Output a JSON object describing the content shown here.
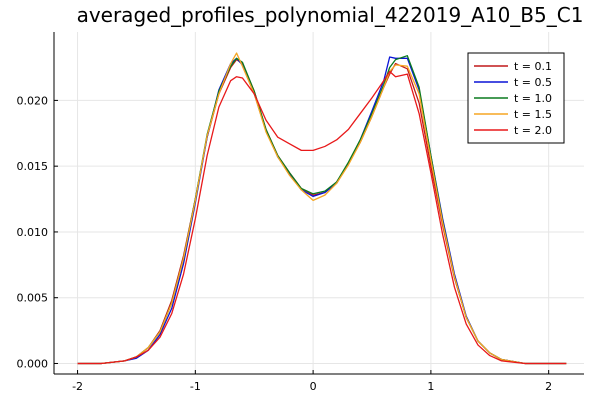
{
  "chart_data": {
    "type": "line",
    "title": "averaged_profiles_polynomial_422019_A10_B5_C1",
    "xlabel": "",
    "ylabel": "",
    "xlim": [
      -2.2,
      2.3
    ],
    "ylim": [
      -0.0008,
      0.0252
    ],
    "grid": true,
    "legend_position": "top-right",
    "x_ticks": [
      {
        "value": -2,
        "label": "-2"
      },
      {
        "value": -1,
        "label": "-1"
      },
      {
        "value": 0,
        "label": "0"
      },
      {
        "value": 1,
        "label": "1"
      },
      {
        "value": 2,
        "label": "2"
      }
    ],
    "y_ticks": [
      {
        "value": 0.0,
        "label": "0.000"
      },
      {
        "value": 0.005,
        "label": "0.005"
      },
      {
        "value": 0.01,
        "label": "0.010"
      },
      {
        "value": 0.015,
        "label": "0.015"
      },
      {
        "value": 0.02,
        "label": "0.020"
      }
    ],
    "x": [
      -2.0,
      -1.8,
      -1.6,
      -1.5,
      -1.4,
      -1.3,
      -1.2,
      -1.1,
      -1.0,
      -0.9,
      -0.8,
      -0.7,
      -0.65,
      -0.6,
      -0.5,
      -0.4,
      -0.3,
      -0.2,
      -0.1,
      0.0,
      0.1,
      0.2,
      0.3,
      0.4,
      0.5,
      0.6,
      0.65,
      0.7,
      0.8,
      0.9,
      1.0,
      1.1,
      1.2,
      1.3,
      1.4,
      1.5,
      1.6,
      1.8,
      2.0,
      2.15
    ],
    "series": [
      {
        "name": "t = 0.1",
        "color": "#c0191a",
        "values": [
          0.0,
          0.0,
          0.0002,
          0.0005,
          0.0012,
          0.0025,
          0.0048,
          0.0082,
          0.0125,
          0.0172,
          0.0205,
          0.0225,
          0.0231,
          0.0228,
          0.0207,
          0.0178,
          0.0158,
          0.0145,
          0.0133,
          0.0128,
          0.013,
          0.0138,
          0.0152,
          0.0168,
          0.0188,
          0.021,
          0.022,
          0.0228,
          0.0224,
          0.0198,
          0.015,
          0.0105,
          0.0065,
          0.0035,
          0.0017,
          0.0008,
          0.0003,
          0.0,
          0.0,
          0.0
        ]
      },
      {
        "name": "t = 0.5",
        "color": "#0a14d6",
        "values": [
          0.0,
          0.0,
          0.0002,
          0.0004,
          0.001,
          0.0022,
          0.0042,
          0.0076,
          0.0122,
          0.0172,
          0.0208,
          0.0228,
          0.0232,
          0.0227,
          0.0205,
          0.0177,
          0.0157,
          0.0144,
          0.0132,
          0.0127,
          0.013,
          0.0137,
          0.0152,
          0.017,
          0.0192,
          0.0215,
          0.0233,
          0.0232,
          0.0232,
          0.0208,
          0.0158,
          0.011,
          0.0068,
          0.0036,
          0.0017,
          0.0008,
          0.0003,
          0.0,
          0.0,
          0.0
        ]
      },
      {
        "name": "t = 1.0",
        "color": "#0a7a1f",
        "values": [
          0.0,
          0.0,
          0.0002,
          0.0005,
          0.0012,
          0.0024,
          0.0046,
          0.008,
          0.0125,
          0.0174,
          0.0207,
          0.0226,
          0.0232,
          0.0229,
          0.0207,
          0.0178,
          0.0158,
          0.0145,
          0.0133,
          0.0129,
          0.0131,
          0.0138,
          0.0153,
          0.017,
          0.019,
          0.0212,
          0.0225,
          0.0231,
          0.0234,
          0.021,
          0.0158,
          0.0108,
          0.0066,
          0.0035,
          0.0017,
          0.0008,
          0.0003,
          0.0,
          0.0,
          0.0
        ]
      },
      {
        "name": "t = 1.5",
        "color": "#f5a623",
        "values": [
          0.0,
          0.0,
          0.0002,
          0.0005,
          0.0012,
          0.0024,
          0.0046,
          0.008,
          0.0124,
          0.0173,
          0.0205,
          0.0228,
          0.0236,
          0.0226,
          0.0205,
          0.0176,
          0.0157,
          0.0143,
          0.0132,
          0.0124,
          0.0128,
          0.0137,
          0.0151,
          0.0168,
          0.0188,
          0.021,
          0.0222,
          0.0227,
          0.0226,
          0.0205,
          0.0155,
          0.0107,
          0.0066,
          0.0035,
          0.0017,
          0.0008,
          0.0003,
          0.0,
          0.0,
          0.0
        ]
      },
      {
        "name": "t = 2.0",
        "color": "#e8191a",
        "values": [
          0.0,
          0.0,
          0.0002,
          0.0005,
          0.001,
          0.002,
          0.0038,
          0.0068,
          0.011,
          0.0158,
          0.0195,
          0.0215,
          0.0218,
          0.0217,
          0.0205,
          0.0185,
          0.0172,
          0.0167,
          0.0162,
          0.0162,
          0.0165,
          0.017,
          0.0178,
          0.019,
          0.0202,
          0.0215,
          0.0222,
          0.0218,
          0.022,
          0.019,
          0.0145,
          0.0098,
          0.0058,
          0.003,
          0.0014,
          0.0006,
          0.0002,
          0.0,
          0.0,
          0.0
        ]
      }
    ]
  }
}
